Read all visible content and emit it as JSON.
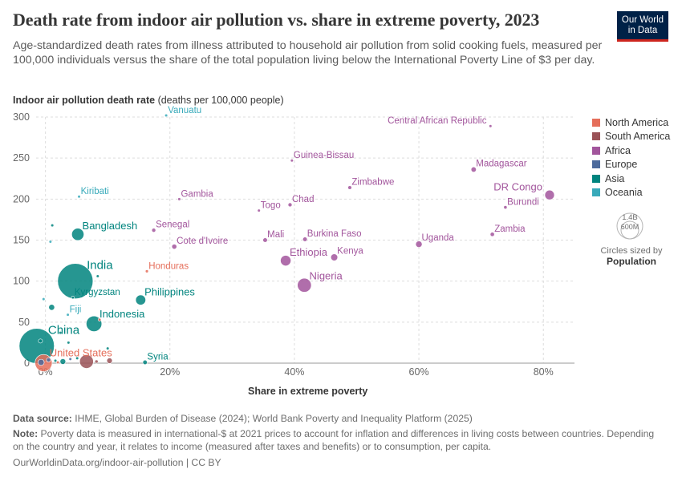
{
  "header": {
    "title": "Death rate from indoor air pollution vs. share in extreme poverty, 2023",
    "subtitle": "Age-standardized death rates from illness attributed to household air pollution from solid cooking fuels, measured per 100,000 individuals versus the share of the total population living below the International Poverty Line of $3 per day.",
    "logo_line1": "Our World",
    "logo_line2": "in Data"
  },
  "axes": {
    "y_label_bold": "Indoor air pollution death rate",
    "y_label_rest": " (deaths per 100,000 people)",
    "x_label": "Share in extreme poverty"
  },
  "legend": {
    "title_line1": "Circles sized by",
    "title_line2": "Population",
    "size_big": "1.4B",
    "size_small": "600M",
    "colors": {
      "North America": "#e56e5a",
      "South America": "#9a5257",
      "Africa": "#a2559c",
      "Europe": "#4c6a9c",
      "Asia": "#00847e",
      "Oceania": "#38aaba"
    }
  },
  "footer": {
    "source_label": "Data source:",
    "source_text": " IHME, Global Burden of Disease (2024); World Bank Poverty and Inequality Platform (2025)",
    "note_label": "Note:",
    "note_text": " Poverty data is measured in international-$ at 2021 prices to account for inflation and differences in living costs between countries. Depending on the country and year, it relates to income (measured after taxes and benefits) or to consumption, per capita.",
    "url": "OurWorldinData.org/indoor-air-pollution | CC BY"
  },
  "chart_data": {
    "type": "scatter",
    "xlabel": "Share in extreme poverty",
    "ylabel": "Indoor air pollution death rate (deaths per 100,000 people)",
    "xlim": [
      -1.5,
      85
    ],
    "ylim": [
      0,
      300
    ],
    "x_ticks": [
      0,
      20,
      40,
      60,
      80
    ],
    "x_tick_labels": [
      "0%",
      "20%",
      "40%",
      "60%",
      "80%"
    ],
    "y_ticks": [
      0,
      50,
      100,
      150,
      200,
      250,
      300
    ],
    "grid": true,
    "legend_position": "right",
    "size_encoding": "Population",
    "series_order": [
      "North America",
      "South America",
      "Africa",
      "Europe",
      "Asia",
      "Oceania"
    ],
    "points": [
      {
        "label": "Vanuatu",
        "x": 19.4,
        "y": 302,
        "region": "Oceania",
        "pop_m": 0.3
      },
      {
        "label": "Central African Republic",
        "x": 71.5,
        "y": 289,
        "region": "Africa",
        "pop_m": 5.7
      },
      {
        "label": "Guinea-Bissau",
        "x": 39.6,
        "y": 247,
        "region": "Africa",
        "pop_m": 2.1
      },
      {
        "label": "Madagascar",
        "x": 68.8,
        "y": 236,
        "region": "Africa",
        "pop_m": 31
      },
      {
        "label": "Kiribati",
        "x": 5.4,
        "y": 203,
        "region": "Oceania",
        "pop_m": 0.1
      },
      {
        "label": "Gambia",
        "x": 21.5,
        "y": 200,
        "region": "Africa",
        "pop_m": 2.7
      },
      {
        "label": "Zimbabwe",
        "x": 48.9,
        "y": 214,
        "region": "Africa",
        "pop_m": 16.3
      },
      {
        "label": "DR Congo",
        "x": 81.0,
        "y": 205,
        "region": "Africa",
        "pop_m": 105
      },
      {
        "label": "Chad",
        "x": 39.3,
        "y": 193,
        "region": "Africa",
        "pop_m": 18.3
      },
      {
        "label": "Togo",
        "x": 34.3,
        "y": 186,
        "region": "Africa",
        "pop_m": 9.3
      },
      {
        "label": "Burundi",
        "x": 73.9,
        "y": 190,
        "region": "Africa",
        "pop_m": 13.2
      },
      {
        "label": "Bangladesh",
        "x": 5.2,
        "y": 157,
        "region": "Asia",
        "pop_m": 171
      },
      {
        "label": "Senegal",
        "x": 17.4,
        "y": 162,
        "region": "Africa",
        "pop_m": 18
      },
      {
        "label": "Zambia",
        "x": 71.8,
        "y": 157,
        "region": "Africa",
        "pop_m": 20.6
      },
      {
        "label": "Mali",
        "x": 35.3,
        "y": 150,
        "region": "Africa",
        "pop_m": 23.3
      },
      {
        "label": "Burkina Faso",
        "x": 41.7,
        "y": 151,
        "region": "Africa",
        "pop_m": 23
      },
      {
        "label": "Uganda",
        "x": 60.0,
        "y": 145,
        "region": "Africa",
        "pop_m": 48.6
      },
      {
        "label": "Cote d'Ivoire",
        "x": 20.7,
        "y": 142,
        "region": "Africa",
        "pop_m": 28.9
      },
      {
        "label": "Ethiopia",
        "x": 38.6,
        "y": 125,
        "region": "Africa",
        "pop_m": 126
      },
      {
        "label": "Kenya",
        "x": 46.4,
        "y": 129,
        "region": "Africa",
        "pop_m": 55
      },
      {
        "label": "India",
        "x": 4.8,
        "y": 100,
        "region": "Asia",
        "pop_m": 1430
      },
      {
        "label": "Honduras",
        "x": 16.3,
        "y": 112,
        "region": "North America",
        "pop_m": 10.6
      },
      {
        "label": "Nigeria",
        "x": 41.6,
        "y": 95,
        "region": "Africa",
        "pop_m": 223
      },
      {
        "label": "Kyrgyzstan",
        "x": 4.4,
        "y": 80,
        "region": "Asia",
        "pop_m": 7
      },
      {
        "label": "Philippines",
        "x": 15.3,
        "y": 77,
        "region": "Asia",
        "pop_m": 115
      },
      {
        "label": "Fiji",
        "x": 3.6,
        "y": 59,
        "region": "Oceania",
        "pop_m": 0.9
      },
      {
        "label": "Indonesia",
        "x": 7.8,
        "y": 48,
        "region": "Asia",
        "pop_m": 278
      },
      {
        "label": "China",
        "x": -1.4,
        "y": 21,
        "region": "Asia",
        "pop_m": 1410
      },
      {
        "label": "United States",
        "x": -0.3,
        "y": 0.2,
        "region": "North America",
        "pop_m": 335
      },
      {
        "label": "Syria",
        "x": 16.0,
        "y": 1,
        "region": "Asia",
        "pop_m": 23
      },
      {
        "label": "",
        "x": 6.6,
        "y": 2,
        "region": "South America",
        "pop_m": 216
      },
      {
        "label": "",
        "x": 10.3,
        "y": 3,
        "region": "South America",
        "pop_m": 35
      },
      {
        "label": "",
        "x": 2.8,
        "y": 2,
        "region": "Asia",
        "pop_m": 37
      },
      {
        "label": "",
        "x": 1.1,
        "y": 168,
        "region": "Asia",
        "pop_m": 3.5
      },
      {
        "label": "",
        "x": 0.8,
        "y": 148,
        "region": "Oceania",
        "pop_m": 0.5
      },
      {
        "label": "",
        "x": 8.4,
        "y": 106,
        "region": "Asia",
        "pop_m": 1.5
      },
      {
        "label": "",
        "x": -0.3,
        "y": 78,
        "region": "Oceania",
        "pop_m": 0.3
      },
      {
        "label": "",
        "x": 1.0,
        "y": 68,
        "region": "Asia",
        "pop_m": 40
      },
      {
        "label": "",
        "x": 8.7,
        "y": 53,
        "region": "North America",
        "pop_m": 0.9
      },
      {
        "label": "",
        "x": 3.7,
        "y": 25,
        "region": "Asia",
        "pop_m": 2
      },
      {
        "label": "",
        "x": 10.0,
        "y": 18,
        "region": "Asia",
        "pop_m": 2.5
      },
      {
        "label": "",
        "x": 4.0,
        "y": 5,
        "region": "Europe",
        "pop_m": 2
      },
      {
        "label": "",
        "x": 0.5,
        "y": 4,
        "region": "Europe",
        "pop_m": 20
      },
      {
        "label": "",
        "x": 8.2,
        "y": 2,
        "region": "South America",
        "pop_m": 12
      },
      {
        "label": "",
        "x": 2.0,
        "y": 1,
        "region": "North America",
        "pop_m": 5
      },
      {
        "label": "",
        "x": -0.7,
        "y": 1,
        "region": "Europe",
        "pop_m": 44
      },
      {
        "label": "",
        "x": 1.6,
        "y": 3,
        "region": "Asia",
        "pop_m": 10
      },
      {
        "label": "",
        "x": 5.1,
        "y": 6,
        "region": "Asia",
        "pop_m": 4
      },
      {
        "label": "",
        "x": 2.4,
        "y": 37,
        "region": "Asia",
        "pop_m": 3
      },
      {
        "label": "",
        "x": -0.8,
        "y": 27,
        "region": "Asia",
        "pop_m": 20
      }
    ]
  }
}
